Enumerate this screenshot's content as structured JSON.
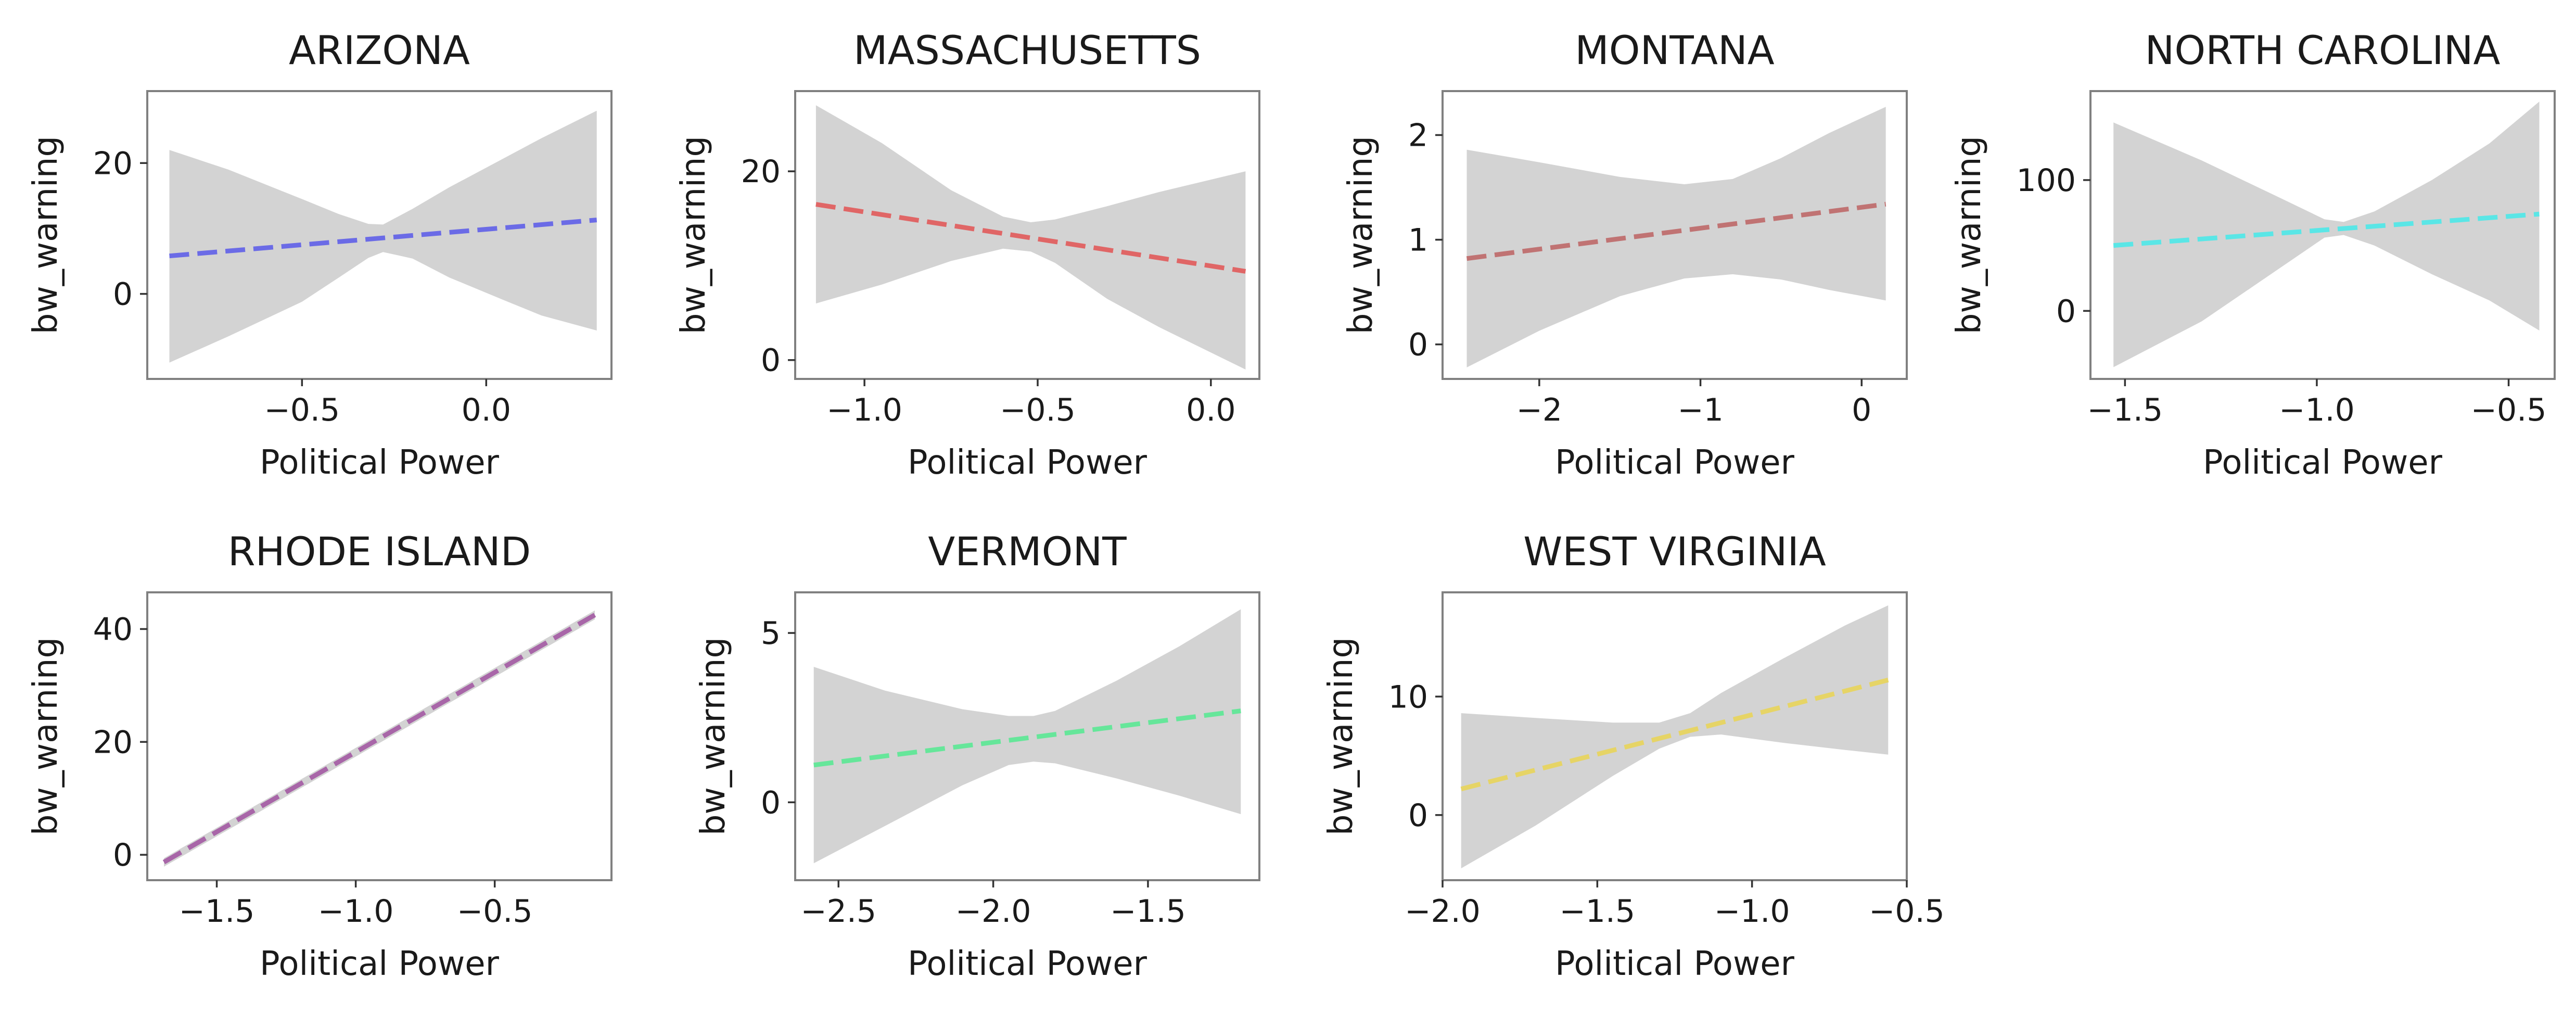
{
  "chart_data": [
    {
      "type": "line",
      "title": "ARIZONA",
      "xlabel": "Political Power",
      "ylabel": "bw_warning",
      "color": "#6b6be6",
      "xlim": [
        -0.92,
        0.34
      ],
      "ylim": [
        -13,
        31
      ],
      "xticks": [
        -0.5,
        0.0
      ],
      "xtick_labels": [
        "−0.5",
        "0.0"
      ],
      "yticks": [
        0,
        20
      ],
      "ytick_labels": [
        "0",
        "20"
      ],
      "x": [
        -0.86,
        0.3
      ],
      "y": [
        5.8,
        11.3
      ],
      "band": {
        "x": [
          -0.86,
          -0.7,
          -0.5,
          -0.4,
          -0.32,
          -0.28,
          -0.2,
          -0.1,
          0.05,
          0.15,
          0.3
        ],
        "upper": [
          22,
          19,
          14.5,
          12.2,
          10.7,
          10.6,
          13,
          16.3,
          20.8,
          23.8,
          28
        ],
        "lower": [
          -10.5,
          -6.5,
          -1.2,
          2.5,
          5.5,
          6.4,
          5.4,
          2.5,
          -1,
          -3.3,
          -5.6
        ]
      }
    },
    {
      "type": "line",
      "title": "MASSACHUSETTS",
      "xlabel": "Political Power",
      "ylabel": "bw_warning",
      "color": "#e06666",
      "xlim": [
        -1.2,
        0.14
      ],
      "ylim": [
        -2,
        28.5
      ],
      "xticks": [
        -1.0,
        -0.5,
        0.0
      ],
      "xtick_labels": [
        "−1.0",
        "−0.5",
        "0.0"
      ],
      "yticks": [
        0,
        20
      ],
      "ytick_labels": [
        "0",
        "20"
      ],
      "x": [
        -1.14,
        0.1
      ],
      "y": [
        16.5,
        9.4
      ],
      "band": {
        "x": [
          -1.14,
          -0.95,
          -0.75,
          -0.6,
          -0.52,
          -0.45,
          -0.3,
          -0.15,
          0.1
        ],
        "upper": [
          27,
          23,
          18,
          15.2,
          14.6,
          14.9,
          16.3,
          17.8,
          20
        ],
        "lower": [
          6,
          8,
          10.5,
          11.8,
          11.5,
          10.3,
          6.5,
          3.5,
          -1
        ]
      }
    },
    {
      "type": "line",
      "title": "MONTANA",
      "xlabel": "Political Power",
      "ylabel": "bw_warning",
      "color": "#c07373",
      "xlim": [
        -2.6,
        0.28
      ],
      "ylim": [
        -0.33,
        2.42
      ],
      "xticks": [
        -2,
        -1,
        0
      ],
      "xtick_labels": [
        "−2",
        "−1",
        "0"
      ],
      "yticks": [
        0,
        1,
        2
      ],
      "ytick_labels": [
        "0",
        "1",
        "2"
      ],
      "x": [
        -2.45,
        0.15
      ],
      "y": [
        0.82,
        1.34
      ],
      "band": {
        "x": [
          -2.45,
          -2.0,
          -1.5,
          -1.1,
          -0.8,
          -0.5,
          -0.2,
          0.15
        ],
        "upper": [
          1.86,
          1.74,
          1.6,
          1.53,
          1.58,
          1.78,
          2.02,
          2.27
        ],
        "lower": [
          -0.22,
          0.13,
          0.46,
          0.63,
          0.67,
          0.62,
          0.52,
          0.42
        ]
      }
    },
    {
      "type": "line",
      "title": "NORTH CAROLINA",
      "xlabel": "Political Power",
      "ylabel": "bw_warning",
      "color": "#5ae6e6",
      "xlim": [
        -1.59,
        -0.38
      ],
      "ylim": [
        -52,
        168
      ],
      "xticks": [
        -1.5,
        -1.0,
        -0.5
      ],
      "xtick_labels": [
        "−1.5",
        "−1.0",
        "−0.5"
      ],
      "yticks": [
        0,
        100
      ],
      "ytick_labels": [
        "0",
        "100"
      ],
      "x": [
        -1.53,
        -0.42
      ],
      "y": [
        50,
        74
      ],
      "band": {
        "x": [
          -1.53,
          -1.3,
          -1.1,
          -0.98,
          -0.93,
          -0.85,
          -0.7,
          -0.55,
          -0.42
        ],
        "upper": [
          144,
          115,
          87,
          70,
          68,
          76,
          100,
          128,
          160
        ],
        "lower": [
          -43,
          -8,
          32,
          56,
          58,
          50,
          28,
          8,
          -15
        ]
      }
    },
    {
      "type": "line",
      "title": "RHODE ISLAND",
      "xlabel": "Political Power",
      "ylabel": "bw_warning",
      "color": "#a866a8",
      "xlim": [
        -1.75,
        -0.08
      ],
      "ylim": [
        -4.5,
        46.5
      ],
      "xticks": [
        -1.5,
        -1.0,
        -0.5
      ],
      "xtick_labels": [
        "−1.5",
        "−1.0",
        "−0.5"
      ],
      "yticks": [
        0,
        20,
        40
      ],
      "ytick_labels": [
        "0",
        "20",
        "40"
      ],
      "x": [
        -1.69,
        -0.14
      ],
      "y": [
        -1.3,
        42.5
      ],
      "band": {
        "x": [
          -1.69,
          -0.14
        ],
        "upper": [
          -0.6,
          43.3
        ],
        "lower": [
          -2.1,
          41.7
        ]
      }
    },
    {
      "type": "line",
      "title": "VERMONT",
      "xlabel": "Political Power",
      "ylabel": "bw_warning",
      "color": "#66e69a",
      "xlim": [
        -2.64,
        -1.14
      ],
      "ylim": [
        -2.3,
        6.2
      ],
      "xticks": [
        -2.5,
        -2.0,
        -1.5
      ],
      "xtick_labels": [
        "−2.5",
        "−2.0",
        "−1.5"
      ],
      "yticks": [
        0,
        5
      ],
      "ytick_labels": [
        "0",
        "5"
      ],
      "x": [
        -2.58,
        -1.2
      ],
      "y": [
        1.1,
        2.7
      ],
      "band": {
        "x": [
          -2.58,
          -2.35,
          -2.1,
          -1.95,
          -1.87,
          -1.8,
          -1.6,
          -1.4,
          -1.2
        ],
        "upper": [
          4.0,
          3.3,
          2.75,
          2.55,
          2.55,
          2.7,
          3.6,
          4.6,
          5.7
        ],
        "lower": [
          -1.8,
          -0.7,
          0.5,
          1.1,
          1.2,
          1.15,
          0.7,
          0.2,
          -0.35
        ]
      }
    },
    {
      "type": "line",
      "title": "WEST VIRGINIA",
      "xlabel": "Political Power",
      "ylabel": "bw_warning",
      "color": "#e6d466",
      "xlim": [
        -2.0,
        -0.5
      ],
      "ylim": [
        -5.5,
        18.8
      ],
      "xticks": [
        -2.0,
        -1.5,
        -1.0,
        -0.5
      ],
      "xtick_labels": [
        "−2.0",
        "−1.5",
        "−1.0",
        "−0.5"
      ],
      "yticks": [
        0,
        10
      ],
      "ytick_labels": [
        "0",
        "10"
      ],
      "x": [
        -1.94,
        -0.56
      ],
      "y": [
        2.2,
        11.4
      ],
      "band": {
        "x": [
          -1.94,
          -1.7,
          -1.45,
          -1.3,
          -1.2,
          -1.1,
          -0.9,
          -0.7,
          -0.56
        ],
        "upper": [
          8.6,
          8.2,
          7.8,
          7.8,
          8.6,
          10.3,
          13.2,
          16,
          17.7
        ],
        "lower": [
          -4.5,
          -0.9,
          3.3,
          5.6,
          6.6,
          6.8,
          6.1,
          5.5,
          5.1
        ]
      }
    }
  ]
}
